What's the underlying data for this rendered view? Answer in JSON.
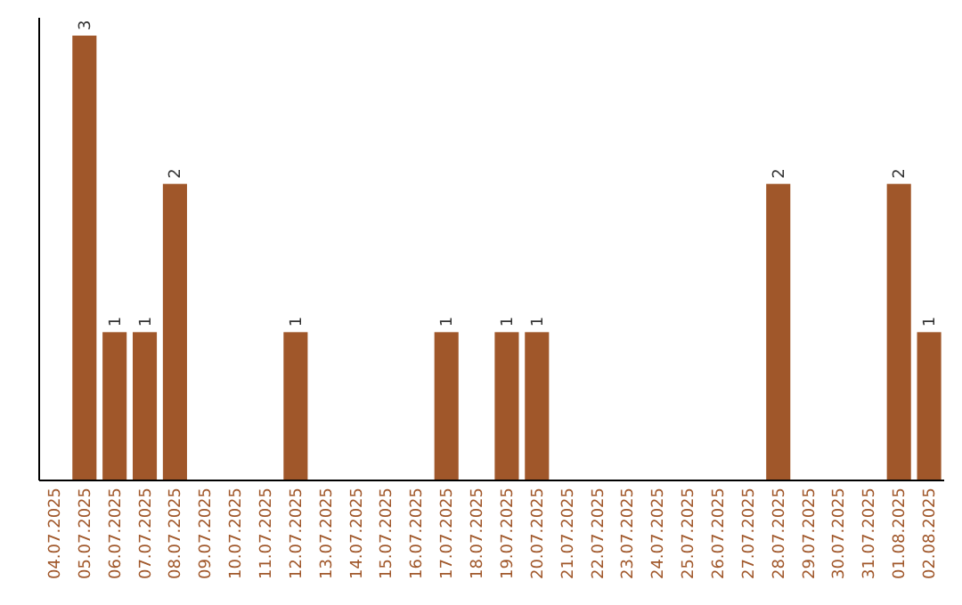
{
  "chart_data": {
    "type": "bar",
    "categories": [
      "04.07.2025",
      "05.07.2025",
      "06.07.2025",
      "07.07.2025",
      "08.07.2025",
      "09.07.2025",
      "10.07.2025",
      "11.07.2025",
      "12.07.2025",
      "13.07.2025",
      "14.07.2025",
      "15.07.2025",
      "16.07.2025",
      "17.07.2025",
      "18.07.2025",
      "19.07.2025",
      "20.07.2025",
      "21.07.2025",
      "22.07.2025",
      "23.07.2025",
      "24.07.2025",
      "25.07.2025",
      "26.07.2025",
      "27.07.2025",
      "28.07.2025",
      "29.07.2025",
      "30.07.2025",
      "31.07.2025",
      "01.08.2025",
      "02.08.2025"
    ],
    "values": [
      0,
      3,
      1,
      1,
      2,
      0,
      0,
      0,
      1,
      0,
      0,
      0,
      0,
      1,
      0,
      1,
      1,
      0,
      0,
      0,
      0,
      0,
      0,
      0,
      2,
      0,
      0,
      0,
      2,
      1
    ],
    "value_labels": [
      null,
      "3",
      "1",
      "1",
      "2",
      null,
      null,
      null,
      "1",
      null,
      null,
      null,
      null,
      "1",
      null,
      "1",
      "1",
      null,
      null,
      null,
      null,
      null,
      null,
      null,
      "2",
      null,
      null,
      null,
      "2",
      "1"
    ],
    "color": "#a0572a"
  }
}
